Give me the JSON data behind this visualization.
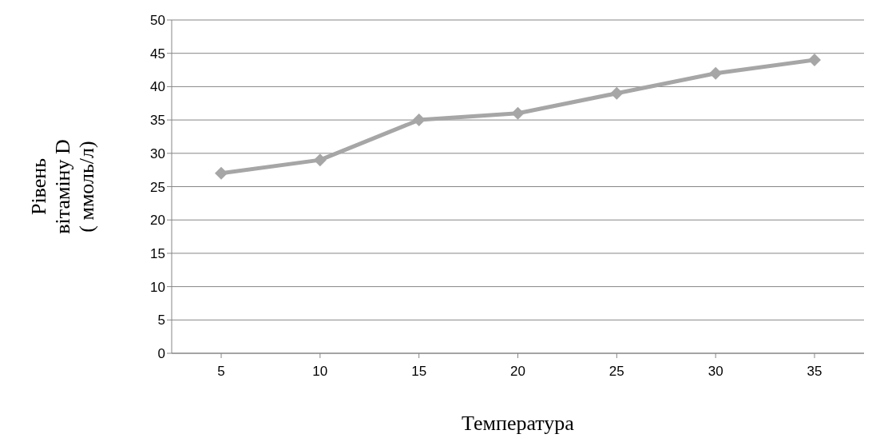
{
  "chart_data": {
    "type": "line",
    "xlabel": "Температура",
    "ylabel": "Рівень\nвітаміну D\n( ммоль/л)",
    "categories": [
      "5",
      "10",
      "15",
      "20",
      "25",
      "30",
      "35"
    ],
    "series": [
      {
        "color": "#a6a6a6",
        "values": [
          27,
          29,
          35,
          36,
          39,
          42,
          44
        ]
      }
    ],
    "ylim": [
      0,
      50
    ],
    "yticks": [
      0,
      5,
      10,
      15,
      20,
      25,
      30,
      35,
      40,
      45,
      50
    ],
    "grid": "y",
    "marker": "diamond",
    "line_style": "solid"
  }
}
